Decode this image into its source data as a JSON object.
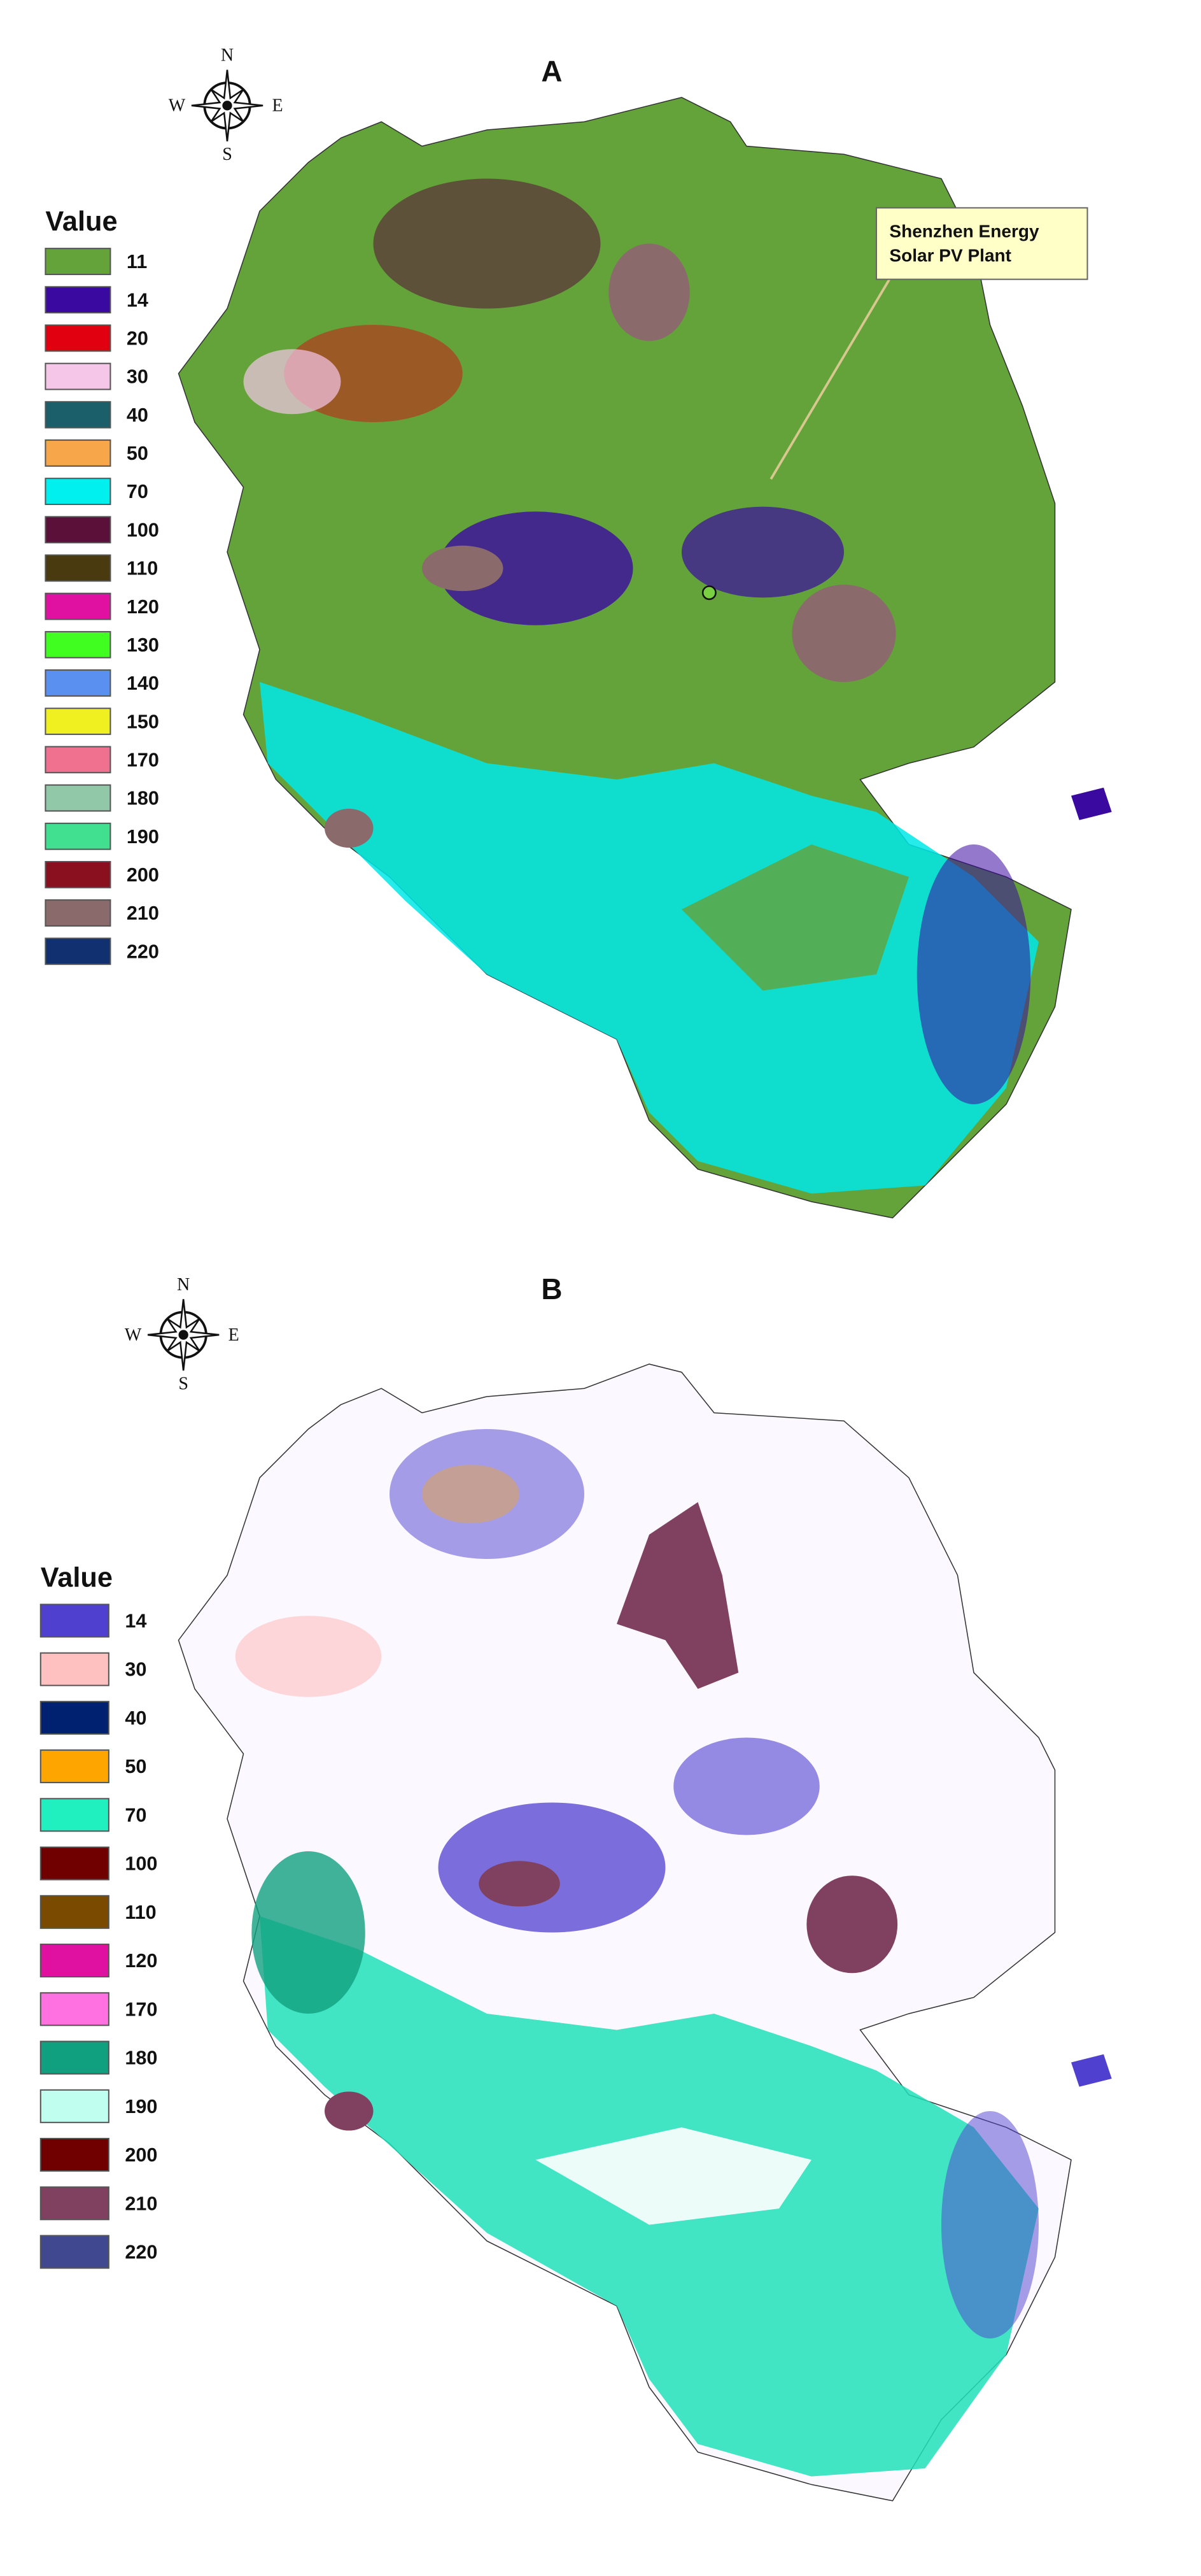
{
  "panels": [
    {
      "title": "A",
      "compass": {
        "n": "N",
        "s": "S",
        "e": "E",
        "w": "W"
      },
      "legend": {
        "title": "Value",
        "items": [
          {
            "label": 11,
            "color": "#63a33a"
          },
          {
            "label": 14,
            "color": "#3a0aa0"
          },
          {
            "label": 20,
            "color": "#e00010"
          },
          {
            "label": 30,
            "color": "#f5c6e8"
          },
          {
            "label": 40,
            "color": "#1a5f6a"
          },
          {
            "label": 50,
            "color": "#f7a64a"
          },
          {
            "label": 70,
            "color": "#00f0f0"
          },
          {
            "label": 100,
            "color": "#5a1038"
          },
          {
            "label": 110,
            "color": "#4a3a10"
          },
          {
            "label": 120,
            "color": "#e010a0"
          },
          {
            "label": 130,
            "color": "#40ff20"
          },
          {
            "label": 140,
            "color": "#5a90f0"
          },
          {
            "label": 150,
            "color": "#f0f020"
          },
          {
            "label": 170,
            "color": "#f07090"
          },
          {
            "label": 180,
            "color": "#90c8a8"
          },
          {
            "label": 190,
            "color": "#40e090"
          },
          {
            "label": 200,
            "color": "#8a1020"
          },
          {
            "label": 210,
            "color": "#8a6a6a"
          },
          {
            "label": 220,
            "color": "#103070"
          }
        ]
      },
      "annotation": {
        "lines": [
          "Shenzhen Energy",
          "Solar PV Plant"
        ]
      }
    },
    {
      "title": "B",
      "compass": {
        "n": "N",
        "s": "S",
        "e": "E",
        "w": "W"
      },
      "legend": {
        "title": "Value",
        "items": [
          {
            "label": 14,
            "color": "#5040d0"
          },
          {
            "label": 30,
            "color": "#ffc0c0"
          },
          {
            "label": 40,
            "color": "#002070"
          },
          {
            "label": 50,
            "color": "#ffa500"
          },
          {
            "label": 70,
            "color": "#20f0c0"
          },
          {
            "label": 100,
            "color": "#700000"
          },
          {
            "label": 110,
            "color": "#7a4a00"
          },
          {
            "label": 120,
            "color": "#e010a0"
          },
          {
            "label": 170,
            "color": "#ff70e0"
          },
          {
            "label": 180,
            "color": "#10a080"
          },
          {
            "label": 190,
            "color": "#c0fff0"
          },
          {
            "label": 200,
            "color": "#700000"
          },
          {
            "label": 210,
            "color": "#804060"
          },
          {
            "label": 220,
            "color": "#404890"
          }
        ]
      }
    }
  ]
}
